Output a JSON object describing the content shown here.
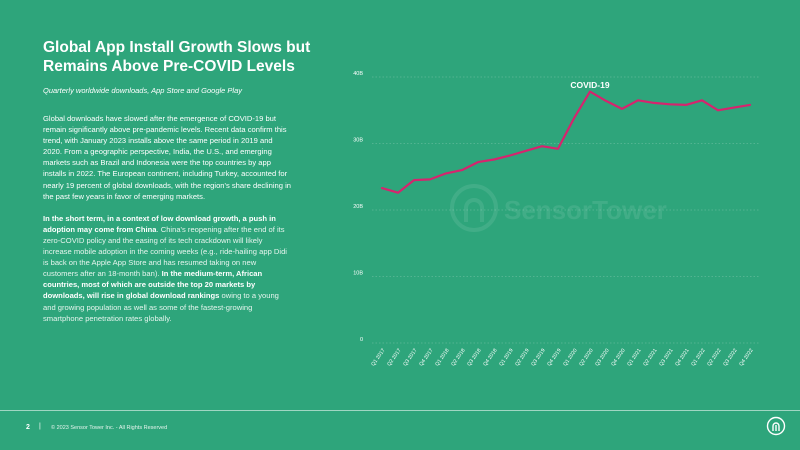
{
  "header": {
    "title": "Global App Install Growth Slows but Remains Above Pre-COVID Levels",
    "subtitle": "Quarterly worldwide downloads, App Store and Google Play"
  },
  "body": {
    "para1": "Global downloads have slowed after the emergence of COVID-19 but remain significantly above pre-pandemic levels. Recent data confirm this trend, with January 2023 installs above the same period in 2019 and 2020.  From a geographic perspective, India, the U.S., and emerging markets such as Brazil and Indonesia were the top countries by app installs in 2022. The European continent, including Turkey, accounted for nearly 19 percent of global downloads, with the region's share declining in the past few years in favor of emerging markets.",
    "para2_bold1": "In the short term, in a context of low download growth, a push in adoption may come from China",
    "para2_text1": ". China's reopening after the end of its zero-COVID policy and the easing of its tech crackdown will likely increase mobile adoption in the coming weeks (e.g., ride-hailing app Didi is back on the Apple App Store and has resumed taking on new customers after an 18-month ban). ",
    "para2_bold2": "In the medium-term, African countries, most of which are outside the top 20 markets by downloads, will rise in global download rankings",
    "para2_text2": " owing to a young and growing population as well as some of the fastest-growing smartphone penetration rates globally."
  },
  "footer": {
    "page_number": "2",
    "separator": "|",
    "copyright": "© 2023 Sensor Tower Inc. - All Rights Reserved"
  },
  "watermark": "SensorTower",
  "colors": {
    "background": "#2ea57b",
    "line": "#d6246e",
    "text": "#ffffff"
  },
  "chart_data": {
    "type": "line",
    "title": "",
    "xlabel": "",
    "ylabel": "",
    "ylim": [
      0,
      40
    ],
    "y_ticks": [
      0,
      10,
      20,
      30,
      40
    ],
    "y_tick_labels": [
      "0",
      "10B",
      "20B",
      "30B",
      "40B"
    ],
    "categories": [
      "Q1 2017",
      "Q2 2017",
      "Q3 2017",
      "Q4 2017",
      "Q1 2018",
      "Q2 2018",
      "Q3 2018",
      "Q4 2018",
      "Q1 2019",
      "Q2 2019",
      "Q3 2019",
      "Q4 2019",
      "Q1 2020",
      "Q2 2020",
      "Q3 2020",
      "Q4 2020",
      "Q1 2021",
      "Q2 2021",
      "Q3 2021",
      "Q4 2021",
      "Q1 2022",
      "Q2 2022",
      "Q3 2022",
      "Q4 2022"
    ],
    "series": [
      {
        "values": [
          23.3,
          22.6,
          24.5,
          24.6,
          25.5,
          26.0,
          27.2,
          27.6,
          28.2,
          28.9,
          29.6,
          29.2,
          33.8,
          37.8,
          36.4,
          35.2,
          36.5,
          36.1,
          35.9,
          35.8,
          36.5,
          35.0,
          35.4,
          35.8
        ]
      }
    ],
    "annotations": [
      {
        "text": "COVID-19",
        "category": "Q2 2020"
      }
    ],
    "grid": true,
    "legend": "none"
  }
}
